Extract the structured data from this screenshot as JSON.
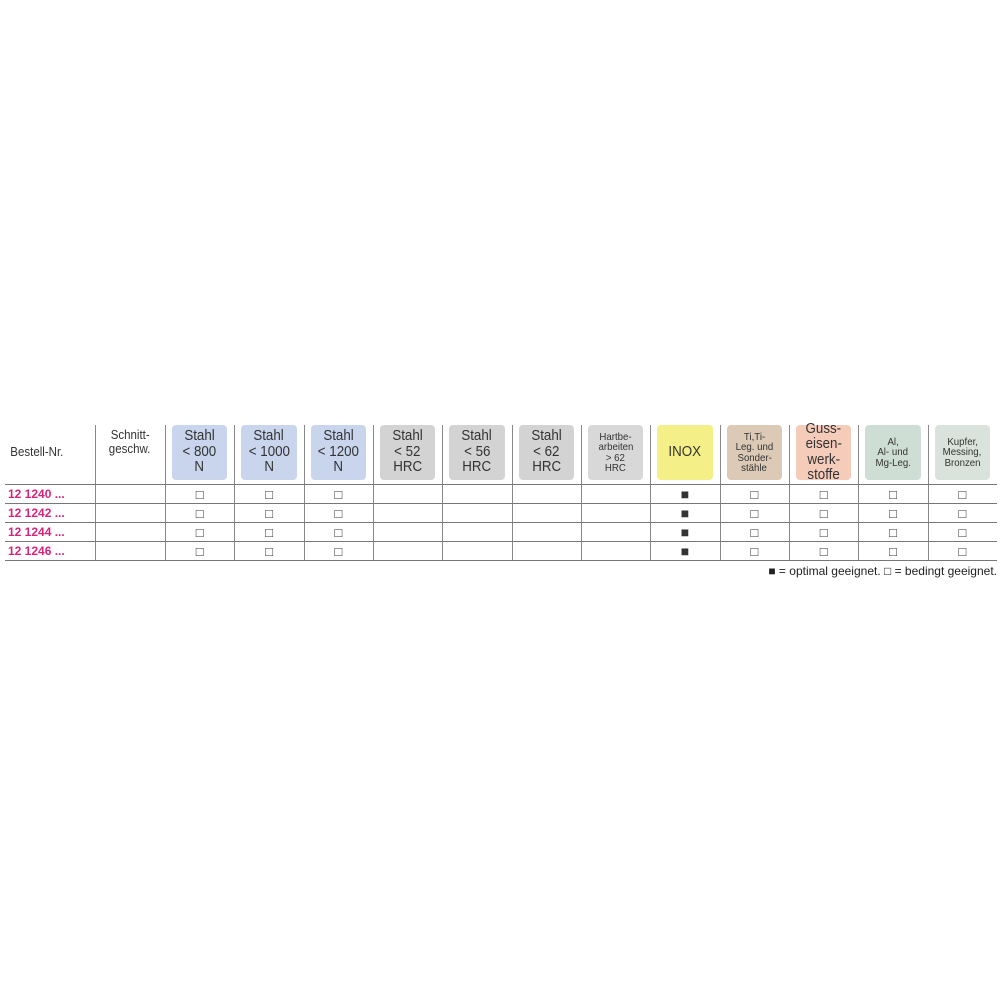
{
  "headers": [
    {
      "lines": [
        "Bestell-Nr."
      ]
    },
    {
      "lines": [
        "Schnitt-",
        "geschw."
      ]
    },
    {
      "lines": [
        "Stahl",
        "< 800",
        "N"
      ],
      "color": "#c8d5ec"
    },
    {
      "lines": [
        "Stahl",
        "< 1000",
        "N"
      ],
      "color": "#c8d5ec"
    },
    {
      "lines": [
        "Stahl",
        "< 1200",
        "N"
      ],
      "color": "#c8d5ec"
    },
    {
      "lines": [
        "Stahl",
        "< 52",
        "HRC"
      ],
      "color": "#d3d3d3"
    },
    {
      "lines": [
        "Stahl",
        "< 56",
        "HRC"
      ],
      "color": "#d3d3d3"
    },
    {
      "lines": [
        "Stahl",
        "< 62",
        "HRC"
      ],
      "color": "#d3d3d3"
    },
    {
      "lines": [
        "Hartbe-",
        "arbeiten",
        "> 62",
        "HRC"
      ],
      "color": "#d8d8d8"
    },
    {
      "lines": [
        "INOX"
      ],
      "color": "#f4ef86"
    },
    {
      "lines": [
        "Ti,Ti-",
        "Leg. und",
        "Sonder-",
        "stähle"
      ],
      "color": "#dccab6"
    },
    {
      "lines": [
        "Guss-",
        "eisen-",
        "werk-",
        "stoffe"
      ],
      "color": "#f5ccba"
    },
    {
      "lines": [
        "Al,",
        "Al- und",
        "Mg-Leg."
      ],
      "color": "#cfded4"
    },
    {
      "lines": [
        "Kupfer,",
        "Messing,",
        "Bronzen"
      ],
      "color": "#d9e3dc"
    }
  ],
  "rows": [
    {
      "cells": [
        "12 1240 ...",
        null,
        "□",
        "□",
        "□",
        null,
        null,
        null,
        null,
        "■",
        "□",
        "□",
        "□",
        "□"
      ]
    },
    {
      "cells": [
        "12 1242 ...",
        null,
        "□",
        "□",
        "□",
        null,
        null,
        null,
        null,
        "■",
        "□",
        "□",
        "□",
        "□"
      ]
    },
    {
      "cells": [
        "12 1244 ...",
        null,
        "□",
        "□",
        "□",
        null,
        null,
        null,
        null,
        "■",
        "□",
        "□",
        "□",
        "□"
      ]
    },
    {
      "cells": [
        "12 1246 ...",
        null,
        "□",
        "□",
        "□",
        null,
        null,
        null,
        null,
        "■",
        "□",
        "□",
        "□",
        "□"
      ]
    }
  ],
  "legend": "■ = optimal geeignet. □ = bedingt geeignet."
}
